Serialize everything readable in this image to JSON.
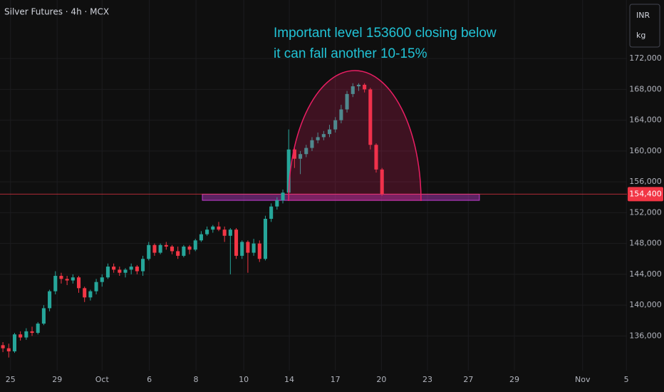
{
  "chart_data": {
    "type": "candlestick",
    "title": "Silver Futures · 4h · MCX",
    "currency": "INR",
    "unit": "kg",
    "annotation": [
      "Important level 153600 closing below",
      "it can fall another 10-15%"
    ],
    "up_color": "#26a69a",
    "down_color": "#f23645",
    "open": [
      134800,
      134400,
      134000,
      136200,
      135800,
      136600,
      136400,
      137600,
      139600,
      141800,
      143800,
      143400,
      143200,
      143600,
      142200,
      141000,
      141800,
      143000,
      143600,
      145000,
      144600,
      144200,
      144600,
      145000,
      144400,
      146000,
      147800,
      146800,
      147800,
      147600,
      147000,
      146400,
      147600,
      147200,
      148400,
      149200,
      149800,
      150200,
      149800,
      149000,
      149800,
      146400,
      148200,
      146800,
      148000,
      146000,
      151200,
      152800,
      153600,
      154600,
      160200,
      159000,
      159600,
      160400,
      161400,
      161800,
      162200,
      162800,
      164000,
      165400,
      167400,
      168400,
      168600,
      168000,
      160800,
      157600
    ],
    "high": [
      135200,
      135000,
      136400,
      136600,
      137000,
      137200,
      137800,
      140000,
      142000,
      144400,
      144200,
      143800,
      144000,
      143800,
      142400,
      142000,
      143400,
      144000,
      145400,
      145400,
      145000,
      144800,
      145400,
      145200,
      146400,
      148200,
      148000,
      148000,
      148200,
      147800,
      147600,
      147800,
      147800,
      148600,
      149600,
      150200,
      150400,
      150800,
      150200,
      150000,
      150000,
      148400,
      148400,
      148600,
      148400,
      151600,
      153200,
      154000,
      155000,
      162800,
      160400,
      160000,
      160800,
      161800,
      162400,
      162600,
      163400,
      164400,
      166000,
      167800,
      168800,
      168800,
      168800,
      168200,
      161000,
      157800
    ],
    "low": [
      133900,
      133200,
      133800,
      135400,
      135500,
      136000,
      136200,
      137400,
      139200,
      141400,
      142800,
      142600,
      142800,
      141600,
      140400,
      140600,
      141400,
      142400,
      143400,
      144200,
      143800,
      143600,
      144000,
      144000,
      143800,
      145800,
      146400,
      146600,
      147200,
      146600,
      146000,
      146200,
      146600,
      147000,
      148200,
      149000,
      149400,
      149600,
      148200,
      144000,
      146000,
      146000,
      144200,
      146400,
      145600,
      145800,
      150800,
      152400,
      153200,
      154000,
      157800,
      157000,
      159200,
      160000,
      161000,
      161400,
      161800,
      162400,
      163600,
      165000,
      167000,
      167800,
      167600,
      160200,
      157200,
      154200
    ],
    "close": [
      134400,
      134000,
      136200,
      135800,
      136600,
      136400,
      137600,
      139600,
      141800,
      143800,
      143400,
      143200,
      143600,
      142200,
      141000,
      141800,
      143000,
      143600,
      145000,
      144600,
      144200,
      144600,
      145000,
      144400,
      146000,
      147800,
      146800,
      147800,
      147600,
      147000,
      146400,
      147600,
      147200,
      148400,
      149200,
      149800,
      150200,
      149800,
      149000,
      149800,
      146400,
      148200,
      146800,
      148000,
      146000,
      151200,
      152800,
      153600,
      154600,
      160200,
      159000,
      159600,
      160400,
      161400,
      161800,
      162200,
      162800,
      164000,
      165400,
      167400,
      168400,
      168600,
      168000,
      160800,
      157600,
      154400
    ],
    "price_line": {
      "value": 154400,
      "label": "154,400"
    },
    "zone": {
      "x": [
        34.2,
        81.7
      ],
      "y": [
        153600,
        154400
      ]
    },
    "xlim": [
      -0.5,
      107
    ],
    "ylim": [
      131500,
      179600
    ],
    "xticks": [
      {
        "value": 1.3,
        "label": "25"
      },
      {
        "value": 9.3,
        "label": "29"
      },
      {
        "value": 17,
        "label": "Oct"
      },
      {
        "value": 25.1,
        "label": "6"
      },
      {
        "value": 33.1,
        "label": "8"
      },
      {
        "value": 41.3,
        "label": "10"
      },
      {
        "value": 49.1,
        "label": "14"
      },
      {
        "value": 57,
        "label": "17"
      },
      {
        "value": 64.9,
        "label": "20"
      },
      {
        "value": 72.8,
        "label": "23"
      },
      {
        "value": 79.8,
        "label": "27"
      },
      {
        "value": 87.7,
        "label": "29"
      },
      {
        "value": 99.4,
        "label": "Nov"
      },
      {
        "value": 106.9,
        "label": "5"
      }
    ],
    "yticks": [
      {
        "value": 136000,
        "label": "136,000"
      },
      {
        "value": 140000,
        "label": "140,000"
      },
      {
        "value": 144000,
        "label": "144,000"
      },
      {
        "value": 148000,
        "label": "148,000"
      },
      {
        "value": 152000,
        "label": "152,000"
      },
      {
        "value": 156000,
        "label": "156,000"
      },
      {
        "value": 160000,
        "label": "160,000"
      },
      {
        "value": 164000,
        "label": "164,000"
      },
      {
        "value": 168000,
        "label": "168,000"
      },
      {
        "value": 172000,
        "label": "172,000"
      }
    ],
    "grid": true
  }
}
